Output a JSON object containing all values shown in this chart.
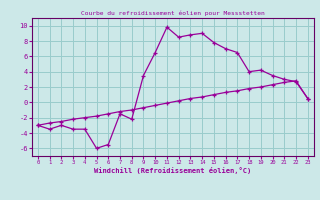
{
  "title": "Courbe du refroidissement éolien pour Messstetten",
  "xlabel": "Windchill (Refroidissement éolien,°C)",
  "background_color": "#cce8e8",
  "grid_color": "#99cccc",
  "line_color": "#990099",
  "spine_color": "#660066",
  "x_wavy": [
    0,
    1,
    2,
    3,
    4,
    5,
    6,
    7,
    8,
    9,
    10,
    11,
    12,
    13,
    14,
    15,
    16,
    17,
    18,
    19,
    20,
    21,
    22,
    23
  ],
  "y_wavy": [
    -3.0,
    -3.5,
    -3.0,
    -3.5,
    -3.5,
    -6.0,
    -5.5,
    -1.5,
    -2.2,
    3.5,
    6.5,
    9.8,
    8.5,
    8.8,
    9.0,
    7.8,
    7.0,
    6.5,
    4.0,
    4.2,
    3.5,
    3.0,
    2.7,
    0.5
  ],
  "x_diag": [
    0,
    1,
    2,
    3,
    4,
    5,
    6,
    7,
    8,
    9,
    10,
    11,
    12,
    13,
    14,
    15,
    16,
    17,
    18,
    19,
    20,
    21,
    22,
    23
  ],
  "y_diag": [
    -3.0,
    -2.7,
    -2.5,
    -2.2,
    -2.0,
    -1.8,
    -1.5,
    -1.2,
    -1.0,
    -0.7,
    -0.4,
    -0.1,
    0.2,
    0.5,
    0.7,
    1.0,
    1.3,
    1.5,
    1.8,
    2.0,
    2.3,
    2.6,
    2.8,
    0.5
  ],
  "ylim": [
    -7,
    11
  ],
  "yticks": [
    -6,
    -4,
    -2,
    0,
    2,
    4,
    6,
    8,
    10
  ],
  "xlim": [
    -0.5,
    23.5
  ],
  "xticks": [
    0,
    1,
    2,
    3,
    4,
    5,
    6,
    7,
    8,
    9,
    10,
    11,
    12,
    13,
    14,
    15,
    16,
    17,
    18,
    19,
    20,
    21,
    22,
    23
  ]
}
